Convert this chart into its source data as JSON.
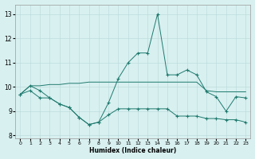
{
  "xlabel": "Humidex (Indice chaleur)",
  "x": [
    0,
    1,
    2,
    3,
    4,
    5,
    6,
    7,
    8,
    9,
    10,
    11,
    12,
    13,
    14,
    15,
    16,
    17,
    18,
    19,
    20,
    21,
    22,
    23
  ],
  "line_main": [
    9.7,
    10.05,
    9.85,
    9.55,
    9.3,
    9.15,
    8.75,
    8.45,
    8.55,
    9.35,
    10.35,
    11.0,
    11.4,
    11.4,
    13.0,
    10.5,
    10.5,
    10.7,
    10.5,
    9.8,
    9.6,
    9.0,
    9.6,
    9.55
  ],
  "line_upper": [
    9.7,
    10.05,
    10.05,
    10.1,
    10.1,
    10.15,
    10.15,
    10.2,
    10.2,
    10.2,
    10.2,
    10.2,
    10.2,
    10.2,
    10.2,
    10.2,
    10.2,
    10.2,
    10.2,
    9.85,
    9.8,
    9.8,
    9.8,
    9.8
  ],
  "line_lower": [
    9.7,
    9.85,
    9.55,
    9.55,
    9.3,
    9.15,
    8.75,
    8.45,
    8.55,
    8.85,
    9.1,
    9.1,
    9.1,
    9.1,
    9.1,
    9.1,
    8.8,
    8.8,
    8.8,
    8.7,
    8.7,
    8.65,
    8.65,
    8.55
  ],
  "color_line": "#1f7a6e",
  "bg_color": "#d8f0f0",
  "grid_color": "#b8d8d8",
  "ylim": [
    7.9,
    13.4
  ],
  "xlim": [
    -0.5,
    23.5
  ],
  "yticks": [
    8,
    9,
    10,
    11,
    12,
    13
  ],
  "xtick_labels": [
    "0",
    "1",
    "2",
    "3",
    "4",
    "5",
    "6",
    "7",
    "8",
    "9",
    "10",
    "11",
    "12",
    "13",
    "14",
    "15",
    "16",
    "17",
    "18",
    "19",
    "20",
    "21",
    "22",
    "23"
  ]
}
